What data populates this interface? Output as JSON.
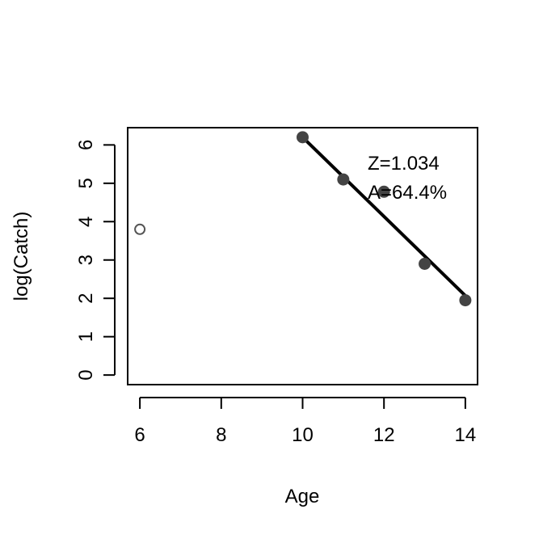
{
  "chart_data": {
    "type": "scatter",
    "title": "",
    "xlabel": "Age",
    "ylabel": "log(Catch)",
    "xlim": [
      5.7,
      14.3
    ],
    "ylim": [
      -0.25,
      6.45
    ],
    "x_ticks": [
      6,
      8,
      10,
      12,
      14
    ],
    "y_ticks": [
      0,
      1,
      2,
      3,
      4,
      5,
      6
    ],
    "grid": false,
    "legend": "none",
    "series": [
      {
        "name": "",
        "style": "open",
        "color": "#555555",
        "points": [
          {
            "x": 6,
            "y": 3.8
          }
        ]
      },
      {
        "name": "",
        "style": "filled",
        "color": "#444444",
        "points": [
          {
            "x": 10,
            "y": 6.2
          },
          {
            "x": 11,
            "y": 5.1
          },
          {
            "x": 12,
            "y": 4.78
          },
          {
            "x": 13,
            "y": 2.9
          },
          {
            "x": 14,
            "y": 1.95
          }
        ]
      }
    ],
    "regression_line": {
      "x": [
        10,
        14
      ],
      "y": [
        6.2,
        2.07
      ],
      "color": "#000000"
    },
    "annotations": [
      "Z=1.034",
      "A=64.4%"
    ]
  }
}
